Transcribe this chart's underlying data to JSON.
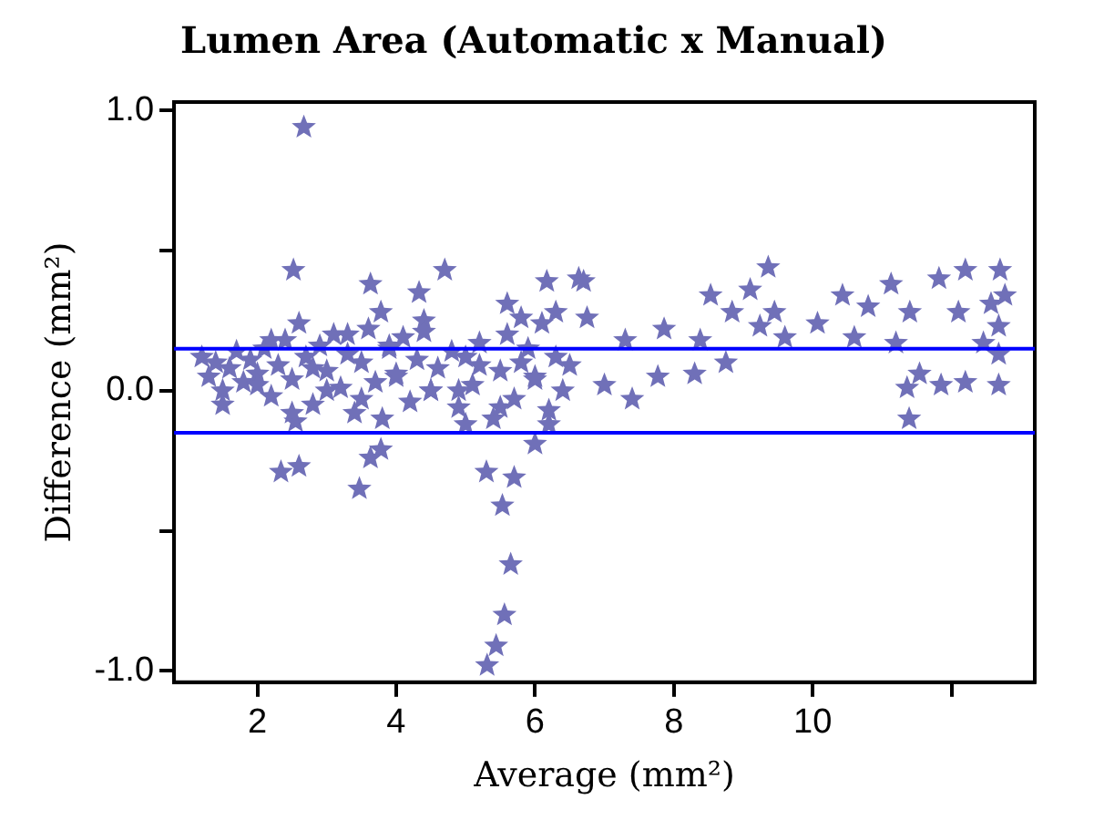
{
  "chart_data": {
    "type": "scatter",
    "title": "Lumen Area (Automatic x Manual)",
    "xlabel": "Average (mm²)",
    "ylabel": "Difference (mm²)",
    "xlim": [
      0.8,
      13.2
    ],
    "xticks": [
      2,
      4,
      6,
      8,
      10,
      {
        "value": 12,
        "label": null
      }
    ],
    "ylim": [
      -1.04,
      1.03
    ],
    "yticks": [
      {
        "value": 1,
        "label": "1.0"
      },
      {
        "value": 0.5,
        "label": null
      },
      {
        "value": 0,
        "label": "0.0"
      },
      {
        "value": -0.5,
        "label": null
      },
      {
        "value": -1,
        "label": "-1.0"
      }
    ],
    "grid": false,
    "legend": false,
    "marker": "star",
    "ref_lines": [
      {
        "axis": "y",
        "value": 0.15,
        "color": "#0000ff"
      },
      {
        "axis": "y",
        "value": -0.15,
        "color": "#0000ff"
      }
    ],
    "series": [
      {
        "color": "#7070b8",
        "x": [
          2.67,
          2.52,
          3.63,
          4.7,
          4.33,
          3.78,
          2.6,
          5.6,
          6.17,
          6.63,
          6.75,
          6.3,
          7.0,
          7.4,
          2.55,
          2.34,
          2.6,
          3.47,
          3.78,
          3.63,
          5.3,
          5.7,
          5.53,
          5.65,
          5.56,
          5.44,
          5.31,
          6.0,
          6.7,
          7.3,
          7.86,
          7.77,
          8.38,
          8.53,
          8.3,
          8.75,
          8.84,
          9.1,
          9.36,
          9.45,
          9.6,
          9.24,
          10.07,
          10.43,
          10.8,
          10.6,
          11.13,
          11.4,
          11.2,
          11.36,
          11.39,
          11.54,
          11.85,
          12.2,
          12.68,
          11.82,
          12.2,
          12.7,
          12.1,
          12.57,
          12.68,
          12.68,
          12.46,
          12.77,
          1.2,
          1.3,
          1.4,
          1.5,
          1.6,
          1.7,
          1.8,
          1.9,
          2.0,
          2.1,
          2.2,
          2.3,
          2.4,
          2.5,
          2.7,
          2.8,
          2.9,
          3.0,
          3.1,
          3.2,
          3.3,
          3.4,
          3.5,
          3.6,
          3.7,
          3.8,
          3.9,
          4.0,
          4.1,
          4.2,
          4.3,
          4.4,
          4.5,
          4.6,
          4.8,
          4.9,
          5.0,
          5.1,
          5.2,
          5.4,
          5.5,
          5.6,
          5.7,
          5.8,
          5.9,
          6.0,
          6.1,
          6.2,
          6.3,
          6.4,
          6.5,
          1.5,
          2.0,
          2.5,
          3.0,
          3.5,
          4.0,
          4.5,
          5.0,
          5.5,
          6.0,
          2.2,
          2.8,
          3.3,
          3.9,
          4.4,
          4.9,
          5.2,
          5.8,
          6.2
        ],
        "values": [
          0.94,
          0.43,
          0.38,
          0.43,
          0.35,
          0.28,
          0.24,
          0.31,
          0.39,
          0.4,
          0.26,
          0.28,
          0.02,
          -0.03,
          -0.11,
          -0.29,
          -0.27,
          -0.35,
          -0.21,
          -0.24,
          -0.29,
          -0.31,
          -0.41,
          -0.62,
          -0.8,
          -0.91,
          -0.98,
          -0.19,
          0.39,
          0.18,
          0.22,
          0.05,
          0.18,
          0.34,
          0.06,
          0.1,
          0.28,
          0.36,
          0.44,
          0.28,
          0.19,
          0.23,
          0.24,
          0.34,
          0.3,
          0.19,
          0.38,
          0.28,
          0.17,
          0.01,
          -0.1,
          0.06,
          0.02,
          0.03,
          0.02,
          0.4,
          0.43,
          0.43,
          0.28,
          0.31,
          0.23,
          0.13,
          0.17,
          0.34,
          0.12,
          0.05,
          0.1,
          0.0,
          0.08,
          0.14,
          0.03,
          0.11,
          0.06,
          0.15,
          -0.02,
          0.09,
          0.18,
          0.04,
          0.12,
          -0.05,
          0.16,
          0.07,
          0.2,
          0.01,
          0.13,
          -0.08,
          0.1,
          0.22,
          0.03,
          -0.1,
          0.15,
          0.05,
          0.19,
          -0.04,
          0.11,
          0.25,
          0.0,
          0.08,
          0.14,
          -0.06,
          0.12,
          0.02,
          0.17,
          -0.1,
          0.07,
          0.2,
          -0.03,
          0.1,
          0.15,
          0.05,
          0.24,
          -0.07,
          0.12,
          0.0,
          0.09,
          -0.05,
          0.02,
          -0.08,
          0.0,
          -0.03,
          0.06,
          0.0,
          -0.12,
          -0.06,
          0.04,
          0.18,
          0.08,
          0.2,
          0.16,
          0.21,
          0.0,
          0.09,
          0.26,
          -0.12
        ]
      }
    ]
  }
}
